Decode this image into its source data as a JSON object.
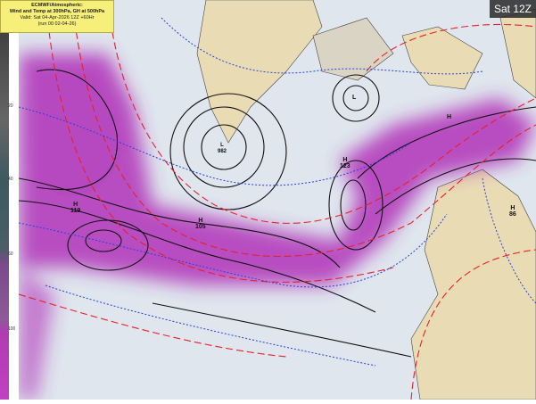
{
  "title_box": {
    "line1": "ECMWF/Atmospheric:",
    "line2": "Wind and Temp at 300hPa, GH at 500hPa",
    "line3": "Valid: Sat 04-Apr-2026 12Z +60Hr",
    "line4": "(run 00 02-04-26)"
  },
  "time_badge": "Sat 12Z",
  "colorbar": {
    "labels": [
      "20",
      "40",
      "60",
      "100"
    ],
    "colors": [
      "#222222",
      "#3d5a60",
      "#7a4a8a",
      "#b03cb0"
    ]
  },
  "map_labels": [
    {
      "text": "H",
      "value": "119"
    },
    {
      "text": "H",
      "value": "105"
    },
    {
      "text": "L",
      "value": "982"
    },
    {
      "text": "H",
      "value": "123"
    },
    {
      "text": "H",
      "value": "86"
    },
    {
      "text": "L",
      "value": ""
    },
    {
      "text": "H",
      "value": ""
    }
  ],
  "colors": {
    "jet": "#b030b8",
    "ocean": "#dfe6ee",
    "land": "#e9dcb4",
    "geopotential": "#111111",
    "temperature": "#e8202a",
    "temperature_cold": "#2a3fe0"
  }
}
